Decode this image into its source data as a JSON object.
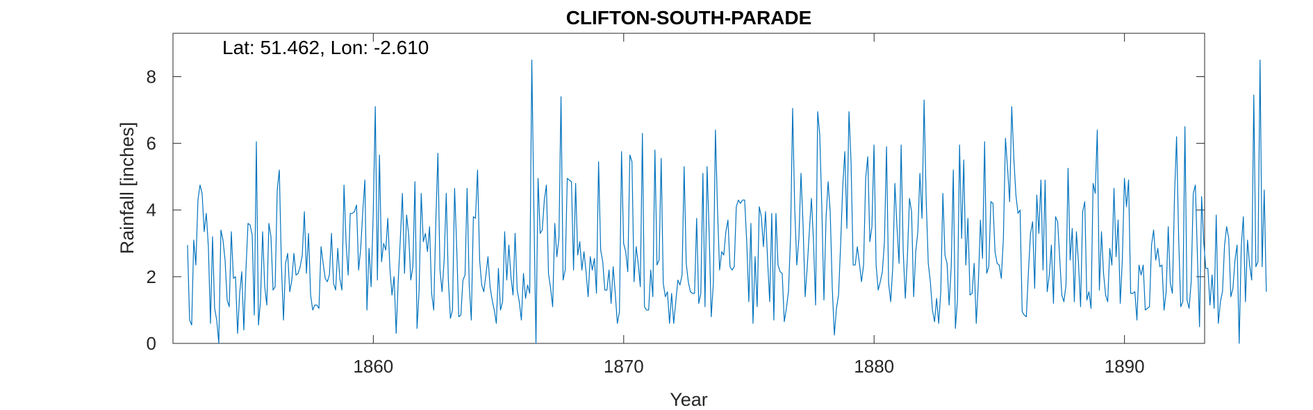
{
  "chart_data": {
    "type": "line",
    "title": "CLIFTON-SOUTH-PARADE",
    "annotation": "Lat: 51.462, Lon: -2.610",
    "xlabel": "Year",
    "ylabel": "Rainfall [inches]",
    "xlim": [
      1852.0,
      1893.2
    ],
    "ylim": [
      0,
      9.3
    ],
    "xticks": [
      1860,
      1870,
      1880,
      1890
    ],
    "yticks": [
      0,
      2,
      4,
      6,
      8
    ],
    "grid": false,
    "box": true,
    "line_color": "#0072BD",
    "series": [
      {
        "x_start": 1852.58,
        "x_step": 0.0833333,
        "values": [
          2.95,
          0.7,
          0.55,
          3.1,
          2.35,
          4.3,
          4.75,
          4.5,
          3.35,
          3.9,
          2.9,
          0.6,
          3.2,
          1.05,
          0.7,
          0.0,
          3.4,
          3.1,
          2.5,
          1.3,
          1.1,
          3.35,
          1.95,
          2.0,
          0.3,
          1.5,
          2.15,
          0.4,
          2.2,
          3.6,
          3.55,
          3.25,
          0.85,
          6.05,
          0.55,
          1.3,
          3.35,
          1.7,
          1.15,
          3.6,
          3.2,
          1.6,
          1.7,
          4.6,
          5.2,
          2.35,
          0.7,
          2.4,
          2.7,
          1.55,
          1.9,
          2.7,
          2.05,
          2.1,
          2.3,
          2.65,
          3.95,
          2.1,
          3.3,
          1.45,
          1.0,
          1.15,
          1.15,
          1.05,
          2.9,
          2.4,
          1.95,
          1.85,
          2.05,
          3.3,
          1.8,
          1.6,
          2.85,
          1.95,
          1.6,
          4.75,
          3.0,
          2.05,
          3.9,
          3.9,
          3.95,
          4.15,
          2.2,
          2.85,
          3.95,
          4.9,
          1.0,
          2.85,
          1.7,
          3.9,
          7.1,
          1.9,
          5.65,
          2.45,
          3.0,
          2.8,
          3.75,
          2.25,
          1.45,
          2.0,
          0.3,
          1.9,
          3.15,
          4.5,
          2.1,
          3.85,
          3.25,
          1.9,
          2.3,
          4.85,
          0.45,
          1.6,
          4.5,
          3.05,
          3.3,
          2.75,
          3.5,
          1.5,
          1.0,
          3.65,
          5.7,
          2.2,
          1.55,
          2.5,
          4.5,
          1.9,
          0.75,
          1.0,
          4.65,
          2.9,
          0.8,
          0.85,
          1.9,
          2.05,
          4.65,
          1.75,
          0.7,
          3.8,
          3.75,
          5.2,
          2.5,
          1.75,
          1.55,
          2.05,
          2.6,
          1.7,
          1.3,
          1.0,
          0.6,
          2.25,
          1.0,
          1.25,
          3.35,
          1.9,
          2.95,
          2.0,
          1.45,
          3.3,
          1.6,
          1.25,
          0.7,
          2.1,
          1.35,
          1.75,
          1.5,
          8.5,
          4.0,
          0.0,
          4.95,
          3.3,
          3.4,
          4.3,
          4.75,
          2.1,
          1.65,
          1.1,
          3.6,
          2.6,
          3.15,
          7.4,
          1.9,
          2.2,
          4.95,
          4.9,
          4.85,
          2.2,
          4.8,
          2.65,
          3.05,
          2.2,
          2.75,
          2.15,
          1.4,
          2.6,
          2.2,
          2.55,
          1.5,
          5.45,
          2.8,
          2.45,
          1.6,
          1.6,
          2.2,
          1.2,
          2.3,
          1.5,
          0.6,
          0.95,
          5.75,
          3.0,
          2.75,
          2.15,
          5.65,
          5.45,
          1.85,
          2.9,
          2.4,
          1.7,
          6.3,
          1.1,
          1.0,
          1.0,
          2.2,
          1.4,
          5.8,
          2.35,
          2.5,
          5.55,
          1.8,
          1.4,
          1.55,
          0.6,
          1.5,
          0.6,
          1.25,
          1.9,
          1.75,
          2.05,
          5.3,
          2.4,
          1.85,
          1.55,
          1.5,
          1.5,
          3.75,
          1.2,
          1.5,
          5.1,
          1.1,
          5.3,
          3.3,
          0.8,
          1.8,
          6.4,
          4.0,
          2.2,
          2.75,
          2.65,
          3.35,
          3.7,
          2.3,
          2.2,
          2.3,
          4.1,
          4.3,
          4.2,
          4.3,
          4.3,
          3.05,
          1.25,
          3.6,
          0.6,
          2.6,
          1.1,
          4.1,
          3.8,
          2.9,
          3.95,
          2.5,
          1.25,
          3.9,
          0.7,
          3.9,
          2.35,
          2.15,
          2.1,
          0.65,
          1.05,
          1.55,
          3.2,
          7.05,
          4.05,
          2.35,
          3.15,
          5.1,
          3.55,
          1.4,
          2.3,
          3.35,
          4.35,
          3.05,
          1.15,
          6.95,
          6.25,
          4.05,
          1.3,
          3.75,
          4.85,
          3.95,
          1.65,
          0.25,
          1.05,
          1.45,
          2.95,
          4.7,
          5.75,
          3.45,
          6.95,
          5.45,
          2.35,
          2.35,
          2.9,
          2.4,
          1.85,
          2.35,
          4.95,
          5.6,
          3.05,
          3.5,
          5.95,
          2.35,
          1.6,
          1.85,
          2.15,
          3.05,
          5.9,
          1.8,
          1.25,
          2.3,
          4.8,
          3.5,
          2.4,
          5.95,
          2.75,
          1.35,
          2.6,
          4.35,
          3.95,
          1.4,
          2.75,
          3.35,
          5.1,
          3.75,
          7.3,
          4.3,
          2.4,
          1.85,
          1.0,
          0.65,
          1.35,
          0.6,
          1.55,
          4.5,
          2.65,
          2.4,
          1.15,
          2.3,
          5.2,
          0.45,
          1.3,
          5.95,
          3.15,
          5.5,
          2.35,
          3.75,
          1.45,
          1.5,
          2.4,
          0.6,
          1.8,
          3.7,
          2.55,
          6.05,
          2.1,
          2.3,
          4.25,
          4.2,
          2.75,
          2.4,
          2.35,
          1.95,
          3.15,
          6.15,
          5.25,
          4.25,
          7.1,
          5.55,
          4.45,
          3.9,
          4.0,
          0.95,
          0.85,
          0.8,
          2.15,
          3.3,
          3.65,
          1.65,
          4.45,
          3.3,
          4.9,
          2.2,
          4.9,
          1.55,
          2.05,
          2.95,
          1.2,
          3.8,
          3.65,
          2.55,
          1.45,
          1.25,
          1.75,
          5.25,
          2.5,
          3.45,
          1.25,
          3.35,
          2.4,
          1.1,
          3.95,
          4.25,
          1.3,
          1.55,
          1.05,
          4.8,
          4.5,
          6.4,
          1.6,
          3.35,
          2.1,
          1.45,
          1.25,
          2.85,
          2.35,
          4.65,
          2.6,
          3.7,
          1.2,
          2.5,
          4.95,
          4.1,
          4.9,
          1.5,
          1.5,
          1.55,
          0.7,
          2.35,
          2.05,
          2.35,
          1.0,
          1.05,
          1.1,
          2.95,
          3.4,
          2.5,
          2.85,
          2.3,
          2.35,
          1.0,
          1.55,
          3.5,
          1.8,
          1.5,
          4.4,
          6.2,
          3.15,
          1.1,
          1.25,
          6.5,
          1.3,
          1.05,
          1.85,
          4.5,
          4.75,
          2.6,
          0.5,
          4.4,
          3.05,
          2.25,
          2.25,
          1.15,
          2.05,
          1.05,
          3.85,
          0.6,
          1.25,
          1.55,
          2.95,
          3.5,
          3.15,
          1.4,
          1.65,
          2.5,
          2.95,
          0.0,
          2.9,
          3.8,
          1.25,
          3.1,
          2.35,
          1.9,
          7.45,
          2.3,
          2.45,
          8.5,
          2.3,
          4.6,
          1.55
        ]
      }
    ]
  }
}
